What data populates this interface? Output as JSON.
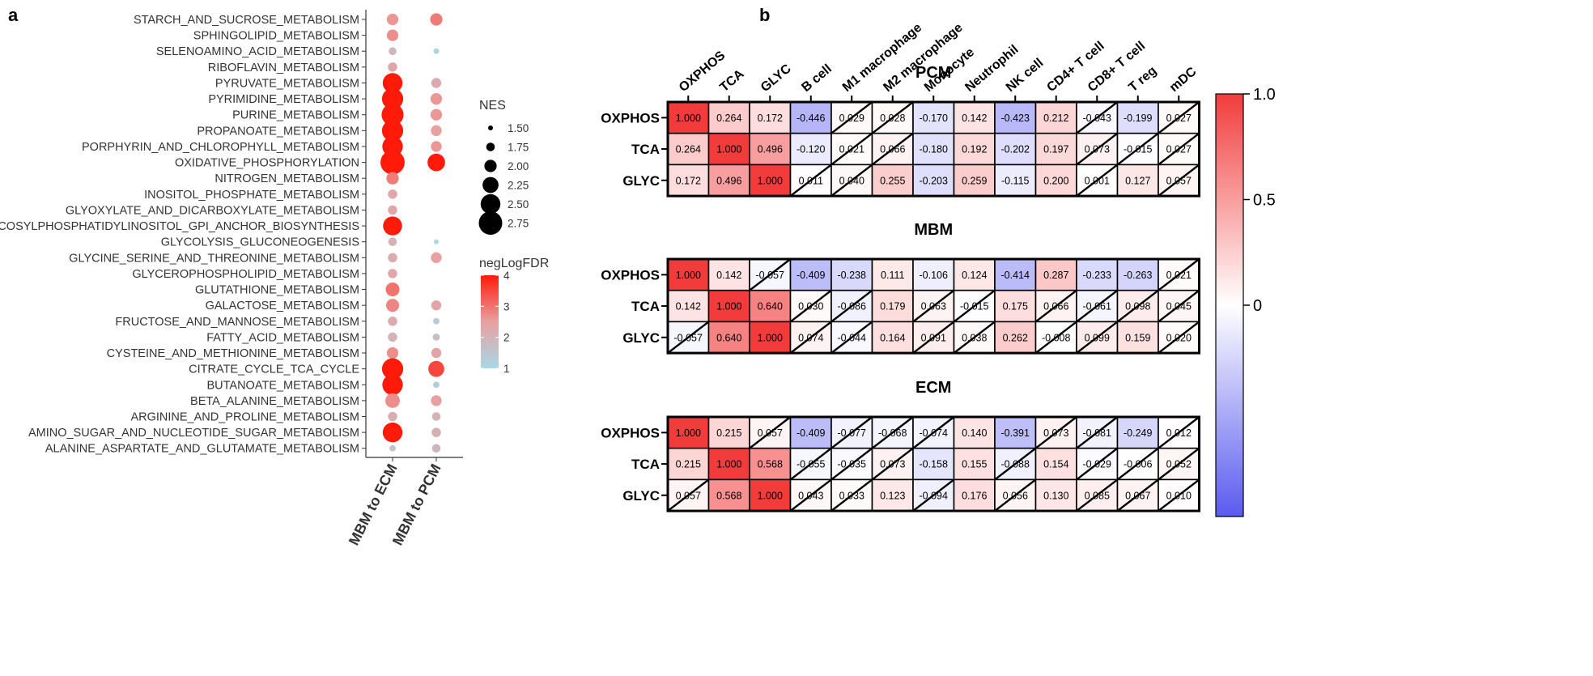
{
  "panel_labels": {
    "a": "a",
    "b": "b"
  },
  "chart_data": [
    {
      "type": "scatter",
      "subtype": "dotplot",
      "panel": "a",
      "x_categories": [
        "MBM to ECM",
        "MBM to PCM"
      ],
      "y_categories": [
        "STARCH_AND_SUCROSE_METABOLISM",
        "SPHINGOLIPID_METABOLISM",
        "SELENOAMINO_ACID_METABOLISM",
        "RIBOFLAVIN_METABOLISM",
        "PYRUVATE_METABOLISM",
        "PYRIMIDINE_METABOLISM",
        "PURINE_METABOLISM",
        "PROPANOATE_METABOLISM",
        "PORPHYRIN_AND_CHLOROPHYLL_METABOLISM",
        "OXIDATIVE_PHOSPHORYLATION",
        "NITROGEN_METABOLISM",
        "INOSITOL_PHOSPHATE_METABOLISM",
        "GLYOXYLATE_AND_DICARBOXYLATE_METABOLISM",
        "GLYCOSYLPHOSPHATIDYLINOSITOL_GPI_ANCHOR_BIOSYNTHESIS",
        "GLYCOLYSIS_GLUCONEOGENESIS",
        "GLYCINE_SERINE_AND_THREONINE_METABOLISM",
        "GLYCEROPHOSPHOLIPID_METABOLISM",
        "GLUTATHIONE_METABOLISM",
        "GALACTOSE_METABOLISM",
        "FRUCTOSE_AND_MANNOSE_METABOLISM",
        "FATTY_ACID_METABOLISM",
        "CYSTEINE_AND_METHIONINE_METABOLISM",
        "CITRATE_CYCLE_TCA_CYCLE",
        "BUTANOATE_METABOLISM",
        "BETA_ALANINE_METABOLISM",
        "ARGININE_AND_PROLINE_METABOLISM",
        "AMINO_SUGAR_AND_NUCLEOTIDE_SUGAR_METABOLISM",
        "ALANINE_ASPARTATE_AND_GLUTAMATE_METABOLISM"
      ],
      "points": [
        {
          "x": "MBM to ECM",
          "y": "STARCH_AND_SUCROSE_METABOLISM",
          "NES": 1.95,
          "negLogFDR": 2.6
        },
        {
          "x": "MBM to PCM",
          "y": "STARCH_AND_SUCROSE_METABOLISM",
          "NES": 2.0,
          "negLogFDR": 2.9
        },
        {
          "x": "MBM to ECM",
          "y": "SPHINGOLIPID_METABOLISM",
          "NES": 1.95,
          "negLogFDR": 2.7
        },
        {
          "x": "MBM to ECM",
          "y": "SELENOAMINO_ACID_METABOLISM",
          "NES": 1.7,
          "negLogFDR": 1.9
        },
        {
          "x": "MBM to PCM",
          "y": "SELENOAMINO_ACID_METABOLISM",
          "NES": 1.55,
          "negLogFDR": 1.1
        },
        {
          "x": "MBM to ECM",
          "y": "RIBOFLAVIN_METABOLISM",
          "NES": 1.8,
          "negLogFDR": 2.3
        },
        {
          "x": "MBM to ECM",
          "y": "PYRUVATE_METABOLISM",
          "NES": 2.5,
          "negLogFDR": 4.0
        },
        {
          "x": "MBM to PCM",
          "y": "PYRUVATE_METABOLISM",
          "NES": 1.85,
          "negLogFDR": 2.2
        },
        {
          "x": "MBM to ECM",
          "y": "PYRIMIDINE_METABOLISM",
          "NES": 2.6,
          "negLogFDR": 4.0
        },
        {
          "x": "MBM to PCM",
          "y": "PYRIMIDINE_METABOLISM",
          "NES": 1.95,
          "negLogFDR": 2.6
        },
        {
          "x": "MBM to ECM",
          "y": "PURINE_METABOLISM",
          "NES": 2.65,
          "negLogFDR": 4.0
        },
        {
          "x": "MBM to PCM",
          "y": "PURINE_METABOLISM",
          "NES": 1.95,
          "negLogFDR": 2.6
        },
        {
          "x": "MBM to ECM",
          "y": "PROPANOATE_METABOLISM",
          "NES": 2.6,
          "negLogFDR": 4.0
        },
        {
          "x": "MBM to PCM",
          "y": "PROPANOATE_METABOLISM",
          "NES": 1.9,
          "negLogFDR": 2.5
        },
        {
          "x": "MBM to ECM",
          "y": "PORPHYRIN_AND_CHLOROPHYLL_METABOLISM",
          "NES": 2.55,
          "negLogFDR": 4.0
        },
        {
          "x": "MBM to PCM",
          "y": "PORPHYRIN_AND_CHLOROPHYLL_METABOLISM",
          "NES": 1.9,
          "negLogFDR": 2.6
        },
        {
          "x": "MBM to ECM",
          "y": "OXIDATIVE_PHOSPHORYLATION",
          "NES": 2.8,
          "negLogFDR": 4.0
        },
        {
          "x": "MBM to PCM",
          "y": "OXIDATIVE_PHOSPHORYLATION",
          "NES": 2.35,
          "negLogFDR": 4.0
        },
        {
          "x": "MBM to ECM",
          "y": "NITROGEN_METABOLISM",
          "NES": 2.0,
          "negLogFDR": 2.9
        },
        {
          "x": "MBM to ECM",
          "y": "INOSITOL_PHOSPHATE_METABOLISM",
          "NES": 1.8,
          "negLogFDR": 2.3
        },
        {
          "x": "MBM to ECM",
          "y": "GLYOXYLATE_AND_DICARBOXYLATE_METABOLISM",
          "NES": 1.8,
          "negLogFDR": 2.3
        },
        {
          "x": "MBM to ECM",
          "y": "GLYCOSYLPHOSPHATIDYLINOSITOL_GPI_ANCHOR_BIOSYNTHESIS",
          "NES": 2.45,
          "negLogFDR": 4.0
        },
        {
          "x": "MBM to ECM",
          "y": "GLYCOLYSIS_GLUCONEOGENESIS",
          "NES": 1.75,
          "negLogFDR": 2.0
        },
        {
          "x": "MBM to PCM",
          "y": "GLYCOLYSIS_GLUCONEOGENESIS",
          "NES": 1.5,
          "negLogFDR": 1.0
        },
        {
          "x": "MBM to ECM",
          "y": "GLYCINE_SERINE_AND_THREONINE_METABOLISM",
          "NES": 1.8,
          "negLogFDR": 2.2
        },
        {
          "x": "MBM to PCM",
          "y": "GLYCINE_SERINE_AND_THREONINE_METABOLISM",
          "NES": 1.9,
          "negLogFDR": 2.5
        },
        {
          "x": "MBM to ECM",
          "y": "GLYCEROPHOSPHOLIPID_METABOLISM",
          "NES": 1.8,
          "negLogFDR": 2.3
        },
        {
          "x": "MBM to ECM",
          "y": "GLUTATHIONE_METABOLISM",
          "NES": 2.1,
          "negLogFDR": 3.0
        },
        {
          "x": "MBM to ECM",
          "y": "GALACTOSE_METABOLISM",
          "NES": 2.05,
          "negLogFDR": 2.8
        },
        {
          "x": "MBM to PCM",
          "y": "GALACTOSE_METABOLISM",
          "NES": 1.85,
          "negLogFDR": 2.4
        },
        {
          "x": "MBM to ECM",
          "y": "FRUCTOSE_AND_MANNOSE_METABOLISM",
          "NES": 1.8,
          "negLogFDR": 2.2
        },
        {
          "x": "MBM to PCM",
          "y": "FRUCTOSE_AND_MANNOSE_METABOLISM",
          "NES": 1.6,
          "negLogFDR": 1.4
        },
        {
          "x": "MBM to ECM",
          "y": "FATTY_ACID_METABOLISM",
          "NES": 1.8,
          "negLogFDR": 2.0
        },
        {
          "x": "MBM to PCM",
          "y": "FATTY_ACID_METABOLISM",
          "NES": 1.65,
          "negLogFDR": 1.7
        },
        {
          "x": "MBM to ECM",
          "y": "CYSTEINE_AND_METHIONINE_METABOLISM",
          "NES": 1.95,
          "negLogFDR": 2.7
        },
        {
          "x": "MBM to PCM",
          "y": "CYSTEINE_AND_METHIONINE_METABOLISM",
          "NES": 1.85,
          "negLogFDR": 2.4
        },
        {
          "x": "MBM to ECM",
          "y": "CITRATE_CYCLE_TCA_CYCLE",
          "NES": 2.6,
          "negLogFDR": 4.0
        },
        {
          "x": "MBM to PCM",
          "y": "CITRATE_CYCLE_TCA_CYCLE",
          "NES": 2.25,
          "negLogFDR": 3.5
        },
        {
          "x": "MBM to ECM",
          "y": "BUTANOATE_METABOLISM",
          "NES": 2.55,
          "negLogFDR": 4.0
        },
        {
          "x": "MBM to PCM",
          "y": "BUTANOATE_METABOLISM",
          "NES": 1.6,
          "negLogFDR": 1.3
        },
        {
          "x": "MBM to ECM",
          "y": "BETA_ALANINE_METABOLISM",
          "NES": 2.15,
          "negLogFDR": 2.7
        },
        {
          "x": "MBM to PCM",
          "y": "BETA_ALANINE_METABOLISM",
          "NES": 1.9,
          "negLogFDR": 2.5
        },
        {
          "x": "MBM to ECM",
          "y": "ARGININE_AND_PROLINE_METABOLISM",
          "NES": 1.8,
          "negLogFDR": 2.1
        },
        {
          "x": "MBM to PCM",
          "y": "ARGININE_AND_PROLINE_METABOLISM",
          "NES": 1.75,
          "negLogFDR": 2.0
        },
        {
          "x": "MBM to ECM",
          "y": "AMINO_SUGAR_AND_NUCLEOTIDE_SUGAR_METABOLISM",
          "NES": 2.5,
          "negLogFDR": 4.0
        },
        {
          "x": "MBM to PCM",
          "y": "AMINO_SUGAR_AND_NUCLEOTIDE_SUGAR_METABOLISM",
          "NES": 1.8,
          "negLogFDR": 2.1
        },
        {
          "x": "MBM to ECM",
          "y": "ALANINE_ASPARTATE_AND_GLUTAMATE_METABOLISM",
          "NES": 1.6,
          "negLogFDR": 1.6
        },
        {
          "x": "MBM to PCM",
          "y": "ALANINE_ASPARTATE_AND_GLUTAMATE_METABOLISM",
          "NES": 1.75,
          "negLogFDR": 1.9
        }
      ],
      "legend_size": {
        "title": "NES",
        "values": [
          1.5,
          1.75,
          2.0,
          2.25,
          2.5,
          2.75
        ],
        "labels": [
          "1.50",
          "1.75",
          "2.00",
          "2.25",
          "2.50",
          "2.75"
        ]
      },
      "legend_color": {
        "title": "negLogFDR",
        "range": [
          1,
          4
        ],
        "ticks": [
          "1",
          "2",
          "3",
          "4"
        ],
        "low_color": "#a8d8e8",
        "mid_color": "#e8a0a0",
        "high_color": "#ff1a0a"
      }
    },
    {
      "type": "heatmap",
      "panel": "b",
      "columns": [
        "OXPHOS",
        "TCA",
        "GLYC",
        "B cell",
        "M1 macrophage",
        "M2 macrophage",
        "Monocyte",
        "Neutrophil",
        "NK cell",
        "CD4+ T cell",
        "CD8+ T cell",
        "T reg",
        "mDC"
      ],
      "rows": [
        "OXPHOS",
        "TCA",
        "GLYC"
      ],
      "color_range": [
        -1,
        1
      ],
      "colorbar_ticks": [
        "1.0",
        "0.5",
        "0"
      ],
      "neg_color": "#5a5af0",
      "pos_color": "#f23c3c",
      "diagonal_threshold": 0.1,
      "blocks": [
        {
          "title": "PCM",
          "values": [
            [
              "1.000",
              "0.264",
              "0.172",
              "-0.446",
              "0.029",
              "0.028",
              "-0.170",
              "0.142",
              "-0.423",
              "0.212",
              "-0.043",
              "-0.199",
              "0.027"
            ],
            [
              "0.264",
              "1.000",
              "0.496",
              "-0.120",
              "0.021",
              "0.066",
              "-0.180",
              "0.192",
              "-0.202",
              "0.197",
              "0.073",
              "-0.015",
              "0.027"
            ],
            [
              "0.172",
              "0.496",
              "1.000",
              "0.011",
              "0.040",
              "0.255",
              "-0.203",
              "0.259",
              "-0.115",
              "0.200",
              "0.001",
              "0.127",
              "0.057"
            ]
          ]
        },
        {
          "title": "MBM",
          "values": [
            [
              "1.000",
              "0.142",
              "-0.057",
              "-0.409",
              "-0.238",
              "0.111",
              "-0.106",
              "0.124",
              "-0.414",
              "0.287",
              "-0.233",
              "-0.263",
              "0.021"
            ],
            [
              "0.142",
              "1.000",
              "0.640",
              "0.030",
              "-0.086",
              "0.179",
              "0.063",
              "-0.015",
              "0.175",
              "0.066",
              "-0.061",
              "0.098",
              "0.045"
            ],
            [
              "-0.057",
              "0.640",
              "1.000",
              "0.074",
              "-0.044",
              "0.164",
              "0.091",
              "0.038",
              "0.262",
              "-0.008",
              "0.099",
              "0.159",
              "0.020"
            ]
          ]
        },
        {
          "title": "ECM",
          "values": [
            [
              "1.000",
              "0.215",
              "0.057",
              "-0.409",
              "-0.077",
              "-0.068",
              "-0.074",
              "0.140",
              "-0.391",
              "0.073",
              "-0.081",
              "-0.249",
              "0.012"
            ],
            [
              "0.215",
              "1.000",
              "0.568",
              "-0.055",
              "-0.035",
              "0.073",
              "-0.158",
              "0.155",
              "-0.088",
              "0.154",
              "-0.029",
              "-0.006",
              "0.052"
            ],
            [
              "0.057",
              "0.568",
              "1.000",
              "0.043",
              "0.033",
              "0.123",
              "-0.094",
              "0.176",
              "0.056",
              "0.130",
              "0.085",
              "0.067",
              "0.010"
            ]
          ]
        }
      ]
    }
  ]
}
